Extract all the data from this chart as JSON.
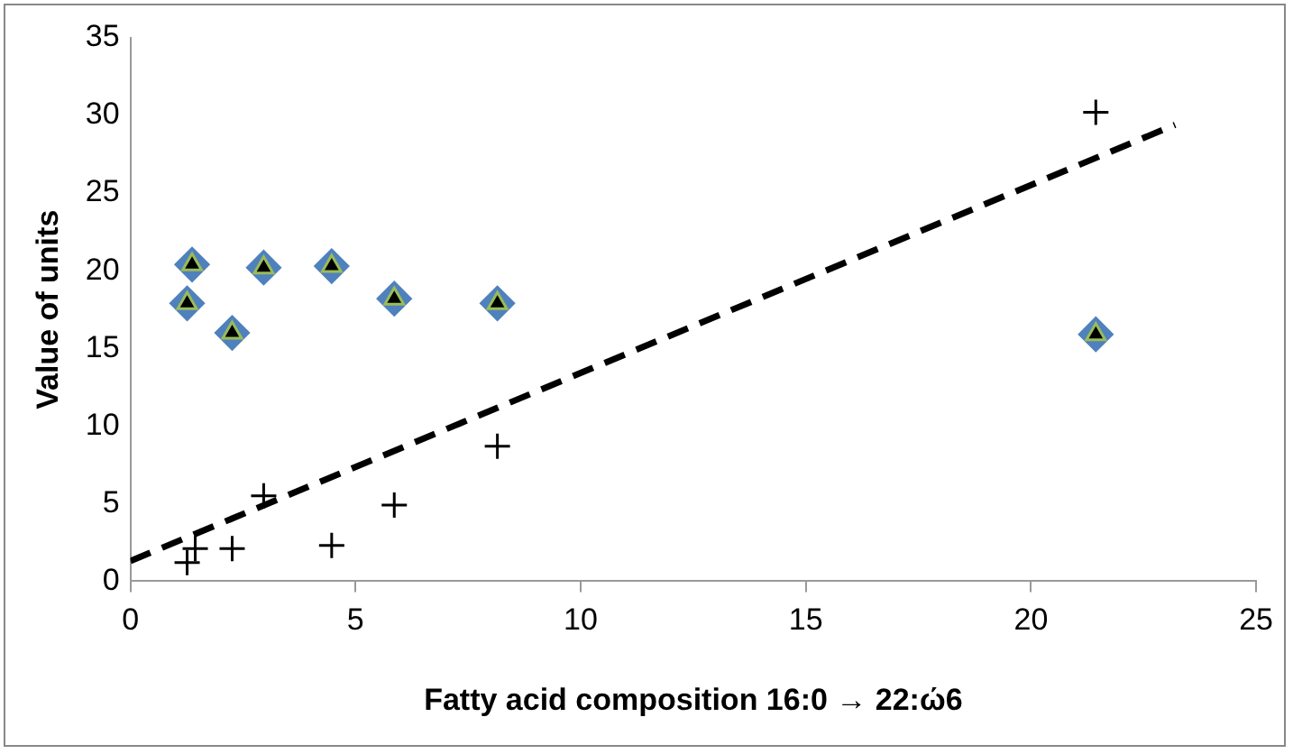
{
  "chart_data": {
    "type": "scatter",
    "xlabel": "Fatty acid composition 16:0 → 22:ώ6",
    "ylabel": "Value of units",
    "x": [
      1.37,
      1.26,
      2.26,
      2.96,
      4.47,
      5.86,
      8.15,
      21.44
    ],
    "series": [
      {
        "color": "#4f81bd",
        "marker": "diamond",
        "values": [
          20.4,
          17.9,
          16.0,
          20.2,
          20.3,
          18.2,
          17.9,
          15.9
        ]
      },
      {
        "color": "#000000",
        "marker": "triangle",
        "values": [
          20.4,
          17.9,
          16.0,
          20.2,
          20.3,
          18.2,
          17.9,
          15.9
        ]
      },
      {
        "color": "#000000",
        "marker": "cross",
        "x": [
          1.26,
          1.44,
          2.26,
          2.96,
          4.47,
          5.86,
          8.15,
          21.44
        ],
        "values": [
          1.2,
          2.1,
          2.1,
          5.5,
          2.3,
          4.9,
          8.7,
          30.2
        ]
      },
      {
        "type": "line",
        "color": "#000000",
        "marker": "none",
        "line_style": "dashed",
        "x": [
          0,
          23.2
        ],
        "values": [
          1.3,
          29.4
        ]
      }
    ],
    "xlim": [
      0,
      25
    ],
    "xticks": [
      0,
      5,
      10,
      15,
      20,
      25
    ],
    "ylim": [
      0,
      35
    ],
    "yticks": [
      0,
      5,
      10,
      15,
      20,
      25,
      30,
      35
    ],
    "grid": false,
    "legend": false
  }
}
